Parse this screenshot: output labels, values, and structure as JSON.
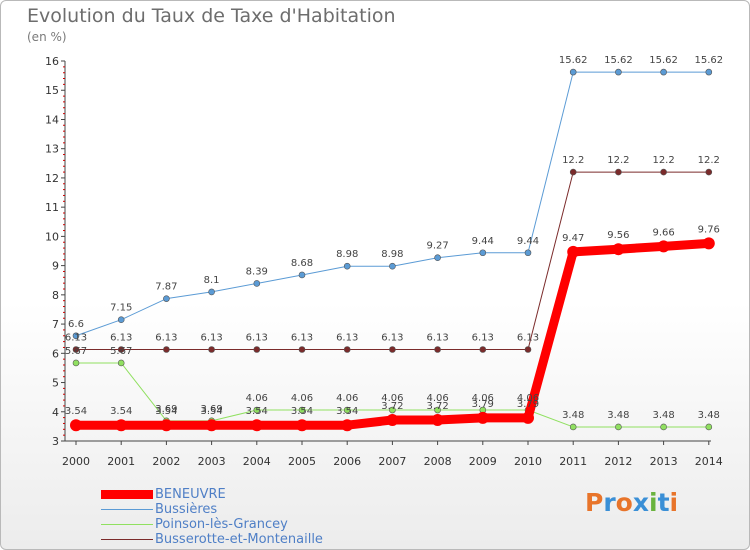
{
  "title": "Evolution du Taux de Taxe d'Habitation",
  "unit_label": "(en %)",
  "logo": {
    "text": "Proxiti",
    "letters": [
      "P",
      "r",
      "o",
      "x",
      "i",
      "t",
      "i"
    ],
    "colors": [
      "#e8742a",
      "#3a8fd6",
      "#e8742a",
      "#3a8fd6",
      "#6ab33e",
      "#3a8fd6",
      "#e8742a"
    ]
  },
  "chart_data": {
    "type": "line",
    "x": [
      "2000",
      "2001",
      "2002",
      "2003",
      "2004",
      "2005",
      "2006",
      "2007",
      "2008",
      "2009",
      "2010",
      "2011",
      "2012",
      "2013",
      "2014"
    ],
    "ylim": [
      3,
      16
    ],
    "yticks": [
      "3",
      "4",
      "5",
      "6",
      "7",
      "8",
      "9",
      "10",
      "11",
      "12",
      "13",
      "14",
      "15",
      "16"
    ],
    "grid": false,
    "legend_position": "bottom-left",
    "series": [
      {
        "name": "BENEUVRE",
        "color": "#ff0000",
        "values": [
          3.54,
          3.54,
          3.54,
          3.54,
          3.54,
          3.54,
          3.54,
          3.72,
          3.72,
          3.79,
          3.79,
          9.47,
          9.56,
          9.66,
          9.76
        ],
        "labels": [
          "3.54",
          "3.54",
          "3.54",
          "3.54",
          "3.54",
          "3.54",
          "3.54",
          "3.72",
          "3.72",
          "3.79",
          "3.79",
          "9.47",
          "9.56",
          "9.66",
          "9.76"
        ]
      },
      {
        "name": "Bussières",
        "color": "#5b9bd5",
        "values": [
          6.6,
          7.15,
          7.87,
          8.1,
          8.39,
          8.68,
          8.98,
          8.98,
          9.27,
          9.44,
          9.44,
          15.62,
          15.62,
          15.62,
          15.62
        ],
        "labels": [
          "6.6",
          "7.15",
          "7.87",
          "8.1",
          "8.39",
          "8.68",
          "8.98",
          "8.98",
          "9.27",
          "9.44",
          "9.44",
          "15.62",
          "15.62",
          "15.62",
          "15.62"
        ]
      },
      {
        "name": "Poinson-lès-Grancey",
        "color": "#90e060",
        "values": [
          5.67,
          5.67,
          3.69,
          3.69,
          4.06,
          4.06,
          4.06,
          4.06,
          4.06,
          4.06,
          4.06,
          3.48,
          3.48,
          3.48,
          3.48
        ],
        "labels": [
          "5.67",
          "5.67",
          "3.69",
          "3.69",
          "4.06",
          "4.06",
          "4.06",
          "4.06",
          "4.06",
          "4.06",
          "4.06",
          "3.48",
          "3.48",
          "3.48",
          "3.48"
        ]
      },
      {
        "name": "Busserotte-et-Montenaille",
        "color": "#7b2b2b",
        "values": [
          6.13,
          6.13,
          6.13,
          6.13,
          6.13,
          6.13,
          6.13,
          6.13,
          6.13,
          6.13,
          6.13,
          12.2,
          12.2,
          12.2,
          12.2
        ],
        "labels": [
          "6.13",
          "6.13",
          "6.13",
          "6.13",
          "6.13",
          "6.13",
          "6.13",
          "6.13",
          "6.13",
          "6.13",
          "6.13",
          "12.2",
          "12.2",
          "12.2",
          "12.2"
        ]
      }
    ]
  }
}
